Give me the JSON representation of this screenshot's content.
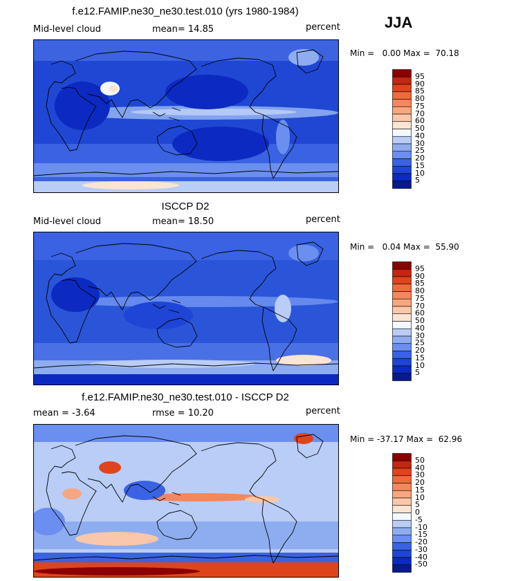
{
  "season": "JJA",
  "chart_data": [
    {
      "type": "heatmap",
      "title": "f.e12.FAMIP.ne30_ne30.test.010 (yrs 1980-1984)",
      "left_label": "Mid-level cloud",
      "center_label": "mean=  14.85",
      "right_label": "percent",
      "minmax": "Min =   0.00 Max =  70.18",
      "stats": {
        "mean": 14.85,
        "min": 0.0,
        "max": 70.18
      },
      "colorbar": {
        "labels": [
          "95",
          "90",
          "85",
          "80",
          "75",
          "70",
          "60",
          "50",
          "40",
          "30",
          "25",
          "20",
          "15",
          "10",
          "5"
        ],
        "colors": [
          "#8b0000",
          "#c4260f",
          "#e0441c",
          "#ee6b3a",
          "#f5875c",
          "#f8a67f",
          "#fbc7aa",
          "#fae4d2",
          "#f4f8ff",
          "#b9cdf6",
          "#8eadf0",
          "#6b8ff0",
          "#3a63e3",
          "#1f45d6",
          "#0c2ac2",
          "#081a8e"
        ]
      }
    },
    {
      "type": "heatmap",
      "title": "ISCCP D2",
      "left_label": "Mid-level cloud",
      "center_label": "mean=  18.50",
      "right_label": "percent",
      "minmax": "Min =   0.04 Max =  55.90",
      "stats": {
        "mean": 18.5,
        "min": 0.04,
        "max": 55.9
      },
      "colorbar": {
        "labels": [
          "95",
          "90",
          "85",
          "80",
          "75",
          "70",
          "60",
          "50",
          "40",
          "30",
          "25",
          "20",
          "15",
          "10",
          "5"
        ],
        "colors": [
          "#8b0000",
          "#c4260f",
          "#e0441c",
          "#ee6b3a",
          "#f5875c",
          "#f8a67f",
          "#fbc7aa",
          "#fae4d2",
          "#f4f8ff",
          "#b9cdf6",
          "#8eadf0",
          "#6b8ff0",
          "#3a63e3",
          "#1f45d6",
          "#0c2ac2",
          "#081a8e"
        ]
      }
    },
    {
      "type": "heatmap",
      "title": "f.e12.FAMIP.ne30_ne30.test.010 - ISCCP D2",
      "left_label": "mean =  -3.64",
      "center_label": "rmse =  10.20",
      "right_label": "percent",
      "minmax": "Min = -37.17 Max =  62.96",
      "stats": {
        "mean": -3.64,
        "rmse": 10.2,
        "min": -37.17,
        "max": 62.96
      },
      "colorbar": {
        "labels": [
          "50",
          "40",
          "30",
          "20",
          "15",
          "10",
          "5",
          "0",
          "-5",
          "-10",
          "-15",
          "-20",
          "-30",
          "-40",
          "-50"
        ],
        "colors": [
          "#8b0000",
          "#c4260f",
          "#e0441c",
          "#ee6b3a",
          "#f5875c",
          "#f8a67f",
          "#fbc7aa",
          "#fae4d2",
          "#f4f8ff",
          "#b9cdf6",
          "#8eadf0",
          "#6b8ff0",
          "#3a63e3",
          "#1f45d6",
          "#0c2ac2",
          "#081a8e"
        ]
      }
    }
  ]
}
